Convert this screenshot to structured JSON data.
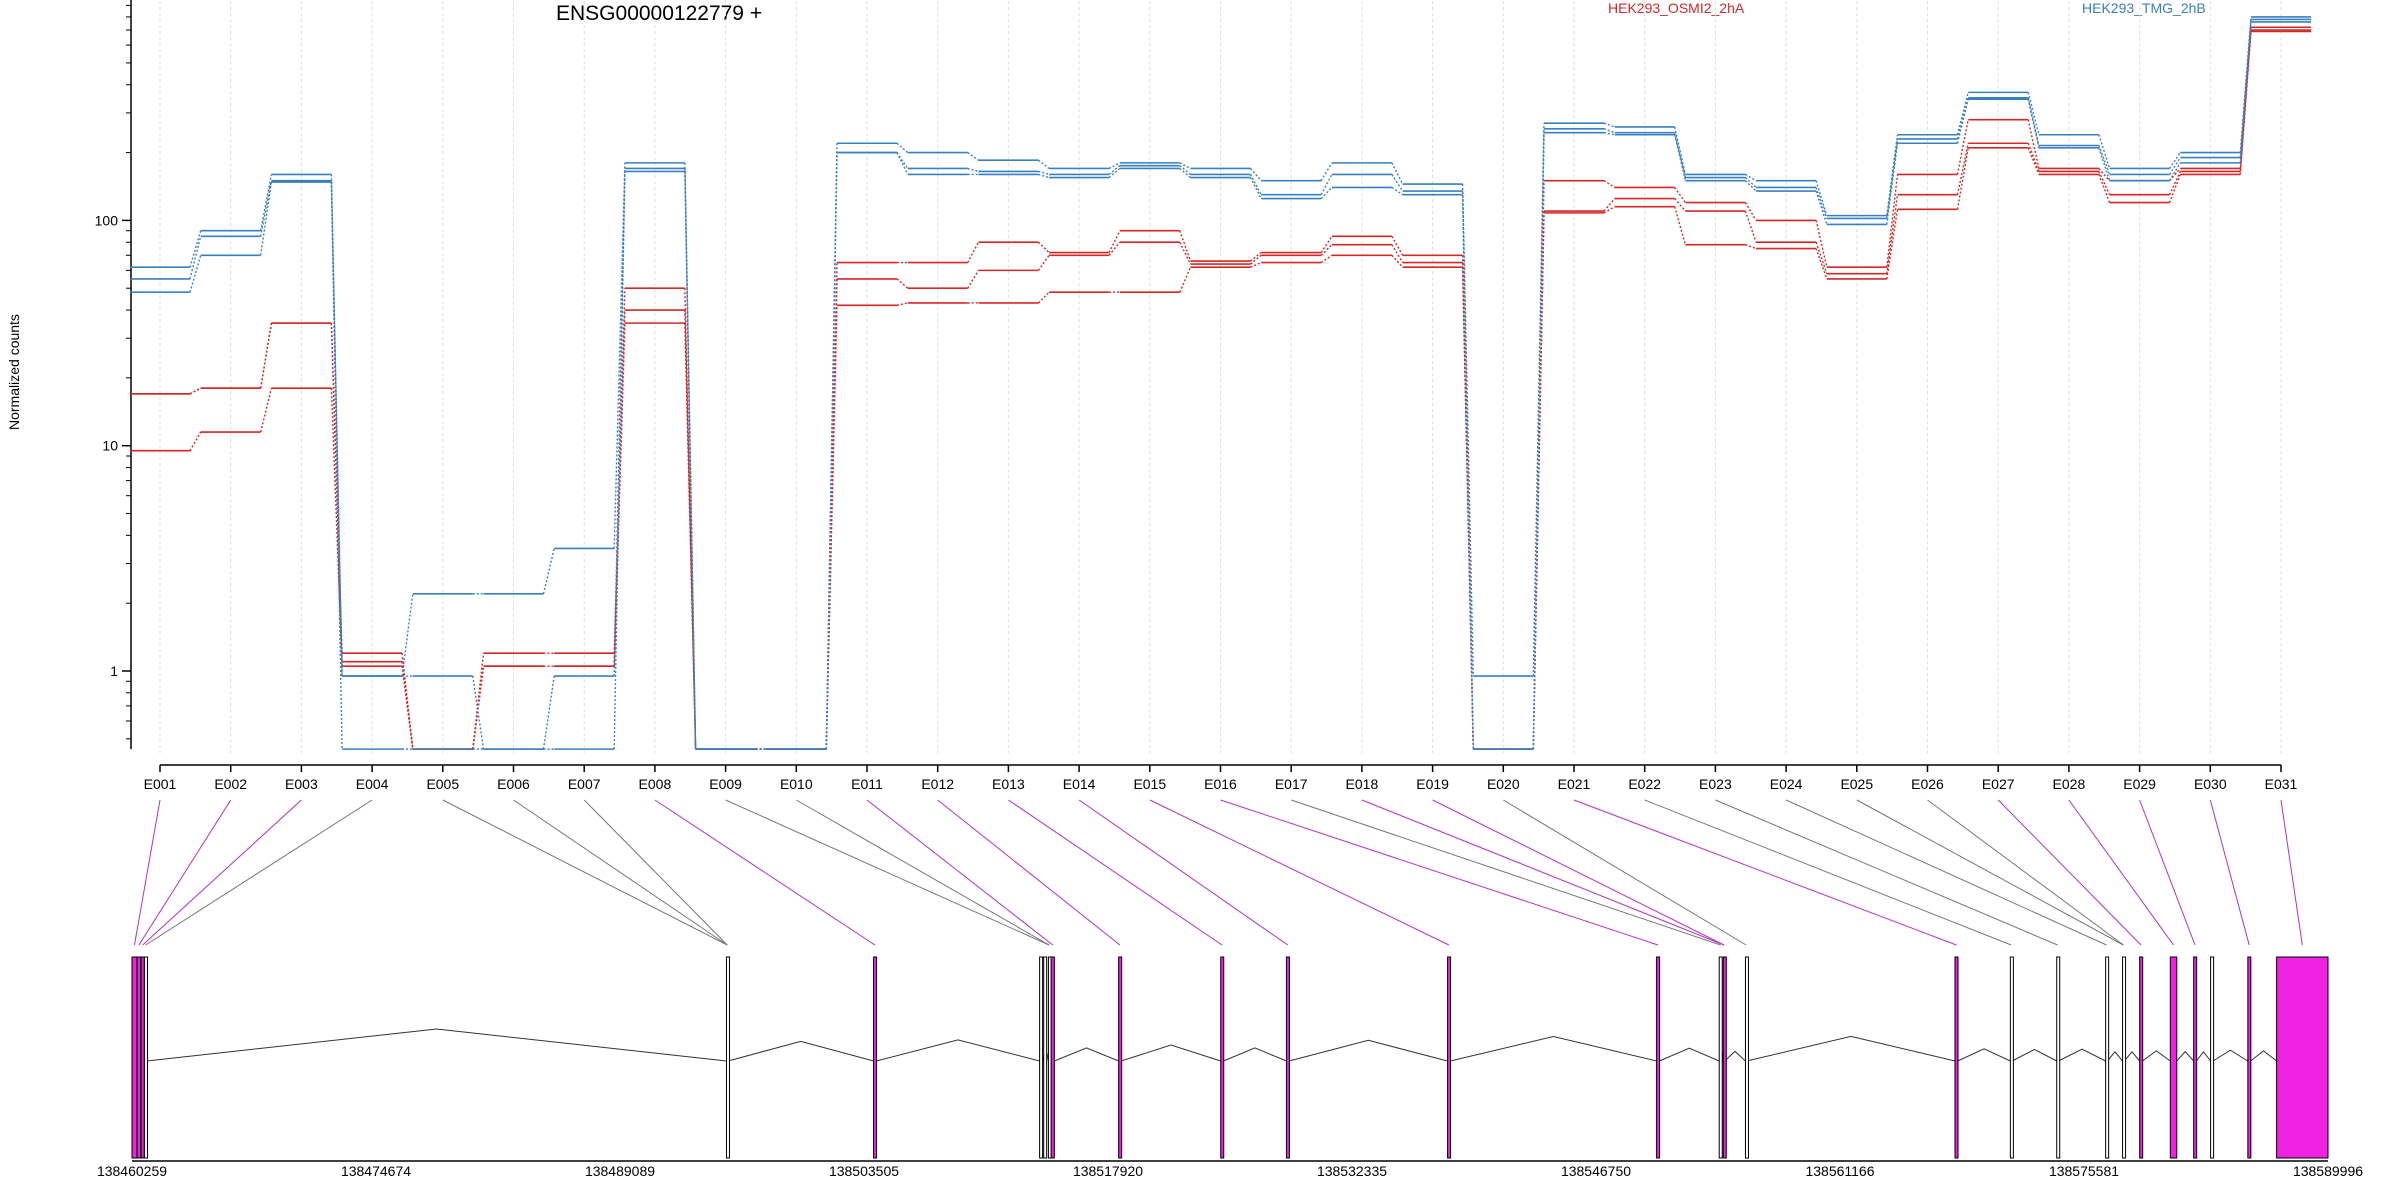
{
  "chart_data": {
    "type": "line",
    "title": "ENSG00000122779 +",
    "ylabel": "Normalized counts",
    "yscale": "log",
    "ylim": [
      0.45,
      1000
    ],
    "yticks": [
      "1",
      "10",
      "100",
      "1000"
    ],
    "categories": [
      "E001",
      "E002",
      "E003",
      "E004",
      "E005",
      "E006",
      "E007",
      "E008",
      "E009",
      "E010",
      "E011",
      "E012",
      "E013",
      "E014",
      "E015",
      "E016",
      "E017",
      "E018",
      "E019",
      "E020",
      "E021",
      "E022",
      "E023",
      "E024",
      "E025",
      "E026",
      "E027",
      "E028",
      "E029",
      "E030",
      "E031"
    ],
    "groups": [
      {
        "name": "HEK293_OSMI2_2hA",
        "color": "#d62728"
      },
      {
        "name": "HEK293_TMG_2hB",
        "color": "#3a7fbf"
      }
    ],
    "series": [
      {
        "group": 0,
        "values": [
          17,
          18,
          35,
          1.2,
          0.45,
          1.2,
          1.2,
          50,
          0.45,
          0.45,
          65,
          65,
          80,
          72,
          90,
          66,
          72,
          85,
          70,
          0.45,
          150,
          140,
          120,
          100,
          62,
          160,
          280,
          170,
          150,
          170,
          720
        ]
      },
      {
        "group": 0,
        "values": [
          17,
          18,
          35,
          1.1,
          0.45,
          1.05,
          1.05,
          40,
          0.45,
          0.45,
          55,
          50,
          60,
          70,
          80,
          64,
          70,
          78,
          65,
          0.45,
          110,
          125,
          110,
          80,
          58,
          130,
          220,
          165,
          130,
          165,
          700
        ]
      },
      {
        "group": 0,
        "values": [
          9.5,
          11.5,
          18,
          1.05,
          0.45,
          1.05,
          1.05,
          35,
          0.45,
          0.45,
          42,
          43,
          43,
          48,
          48,
          62,
          65,
          70,
          62,
          0.45,
          108,
          115,
          78,
          75,
          55,
          112,
          210,
          160,
          120,
          160,
          690
        ]
      },
      {
        "group": 1,
        "values": [
          62,
          90,
          160,
          0.95,
          2.2,
          2.2,
          3.5,
          180,
          0.45,
          0.45,
          220,
          200,
          185,
          170,
          180,
          170,
          150,
          180,
          145,
          0.95,
          270,
          260,
          160,
          150,
          105,
          240,
          370,
          240,
          170,
          200,
          800
        ]
      },
      {
        "group": 1,
        "values": [
          55,
          85,
          150,
          0.95,
          0.95,
          0.45,
          0.95,
          170,
          0.45,
          0.45,
          200,
          170,
          165,
          160,
          175,
          160,
          130,
          160,
          135,
          0.45,
          255,
          245,
          155,
          140,
          102,
          230,
          350,
          215,
          160,
          190,
          780
        ]
      },
      {
        "group": 1,
        "values": [
          48,
          70,
          148,
          0.45,
          0.45,
          0.45,
          0.45,
          165,
          0.45,
          0.45,
          200,
          160,
          160,
          155,
          170,
          155,
          125,
          140,
          130,
          0.45,
          245,
          240,
          150,
          135,
          96,
          220,
          345,
          210,
          150,
          180,
          760
        ]
      }
    ],
    "genomic_ticks": [
      "138460259",
      "138474674",
      "138489089",
      "138503505",
      "138517920",
      "138532335",
      "138546750",
      "138561166",
      "138575581",
      "138589996"
    ],
    "exons": [
      {
        "start": 138460259,
        "end": 138460550,
        "type": "counted"
      },
      {
        "start": 138460580,
        "end": 138460760,
        "type": "counted"
      },
      {
        "start": 138460800,
        "end": 138460980,
        "type": "counted"
      },
      {
        "start": 138461000,
        "end": 138461130,
        "type": "other"
      },
      {
        "start": 138495380,
        "end": 138495470,
        "type": "other"
      },
      {
        "start": 138504070,
        "end": 138504230,
        "type": "counted"
      },
      {
        "start": 138513880,
        "end": 138513960,
        "type": "other"
      },
      {
        "start": 138514120,
        "end": 138514200,
        "type": "other"
      },
      {
        "start": 138514400,
        "end": 138514480,
        "type": "other"
      },
      {
        "start": 138514560,
        "end": 138514750,
        "type": "counted"
      },
      {
        "start": 138518550,
        "end": 138518700,
        "type": "counted"
      },
      {
        "start": 138524580,
        "end": 138524740,
        "type": "counted"
      },
      {
        "start": 138528460,
        "end": 138528620,
        "type": "counted"
      },
      {
        "start": 138537980,
        "end": 138538140,
        "type": "counted"
      },
      {
        "start": 138550330,
        "end": 138550490,
        "type": "counted"
      },
      {
        "start": 138554030,
        "end": 138554190,
        "type": "other"
      },
      {
        "start": 138554270,
        "end": 138554350,
        "type": "counted"
      },
      {
        "start": 138555580,
        "end": 138555660,
        "type": "other"
      },
      {
        "start": 138567960,
        "end": 138568120,
        "type": "counted"
      },
      {
        "start": 138571230,
        "end": 138571330,
        "type": "other"
      },
      {
        "start": 138573970,
        "end": 138574070,
        "type": "other"
      },
      {
        "start": 138576860,
        "end": 138576960,
        "type": "other"
      },
      {
        "start": 138577860,
        "end": 138577960,
        "type": "other"
      },
      {
        "start": 138578870,
        "end": 138579030,
        "type": "counted"
      },
      {
        "start": 138580680,
        "end": 138581060,
        "type": "counted"
      },
      {
        "start": 138582060,
        "end": 138582220,
        "type": "counted"
      },
      {
        "start": 138583060,
        "end": 138583200,
        "type": "other"
      },
      {
        "start": 138585260,
        "end": 138585420,
        "type": "counted"
      },
      {
        "start": 138586960,
        "end": 138589996,
        "type": "counted"
      }
    ],
    "exon_map": [
      0,
      1,
      2,
      3,
      4,
      4,
      4,
      5,
      8,
      8,
      9,
      10,
      11,
      12,
      13,
      14,
      15,
      16,
      16,
      17,
      18,
      19,
      20,
      21,
      22,
      22,
      23,
      24,
      25,
      27,
      28
    ],
    "colors": {
      "counted": "#ee22e0",
      "other": "#ffffff",
      "outline": "#000000",
      "link_counted": "#b233c2",
      "link_other": "#777777",
      "grid": "#dddddd"
    }
  }
}
